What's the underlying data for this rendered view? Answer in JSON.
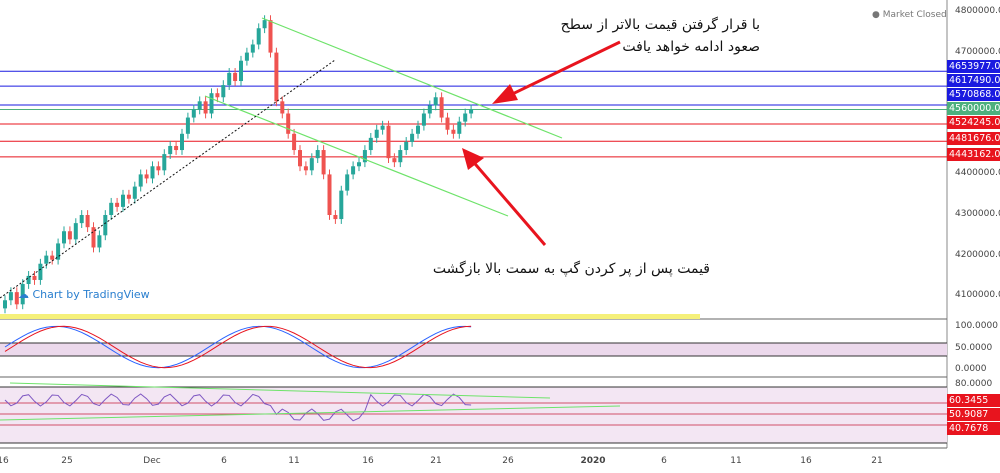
{
  "status": "Market Closed",
  "branding": "Chart by TradingView",
  "annotations": {
    "top": [
      "با قرار گرفتن قیمت بالاتر از سطح",
      "صعود ادامه خواهد یافت"
    ],
    "bottom": "قیمت پس از پر کردن گپ به سمت بالا بازگشت"
  },
  "chart_data": [
    {
      "type": "candlestick",
      "yticks": [
        "4800000.0",
        "4700000.0",
        "4400000.0",
        "4300000.0",
        "4200000.0",
        "4100000.0"
      ],
      "ylim": [
        4070000,
        4820000
      ],
      "xticks": [
        "16",
        "25",
        "Dec",
        "6",
        "11",
        "16",
        "21",
        "26",
        "2020",
        "6",
        "11",
        "16",
        "21"
      ],
      "levels": [
        {
          "value": "4653977.0",
          "color": "#1a1ae0"
        },
        {
          "value": "4617490.0",
          "color": "#1a1ae0"
        },
        {
          "value": "4570868.0",
          "color": "#1a1ae0"
        },
        {
          "value": "4560000.0",
          "color": "#4caf7d"
        },
        {
          "value": "4524245.0",
          "color": "#e8141e"
        },
        {
          "value": "4481676.0",
          "color": "#e8141e"
        },
        {
          "value": "4443162.0",
          "color": "#e8141e"
        }
      ],
      "closes": [
        4090000,
        4110000,
        4080000,
        4130000,
        4150000,
        4140000,
        4180000,
        4200000,
        4190000,
        4230000,
        4260000,
        4240000,
        4280000,
        4300000,
        4270000,
        4220000,
        4250000,
        4300000,
        4330000,
        4320000,
        4350000,
        4340000,
        4370000,
        4400000,
        4390000,
        4420000,
        4410000,
        4450000,
        4470000,
        4460000,
        4500000,
        4540000,
        4560000,
        4580000,
        4550000,
        4600000,
        4590000,
        4620000,
        4650000,
        4630000,
        4680000,
        4700000,
        4720000,
        4760000,
        4780000,
        4700000,
        4580000,
        4550000,
        4500000,
        4460000,
        4420000,
        4410000,
        4440000,
        4460000,
        4400000,
        4300000,
        4290000,
        4360000,
        4400000,
        4420000,
        4430000,
        4460000,
        4490000,
        4510000,
        4520000,
        4440000,
        4430000,
        4460000,
        4480000,
        4500000,
        4520000,
        4550000,
        4570000,
        4590000,
        4540000,
        4510000,
        4500000,
        4530000,
        4550000,
        4560000
      ]
    },
    {
      "type": "line",
      "name": "stoch",
      "yticks": [
        "100.0000",
        "50.0000",
        "0.0000"
      ],
      "ylim": [
        0,
        100
      ]
    },
    {
      "type": "line",
      "name": "rsi",
      "yticks": [
        "80.0000"
      ],
      "labels": [
        "60.3455",
        "50.9087",
        "40.7678"
      ],
      "ylim": [
        20,
        80
      ]
    }
  ]
}
